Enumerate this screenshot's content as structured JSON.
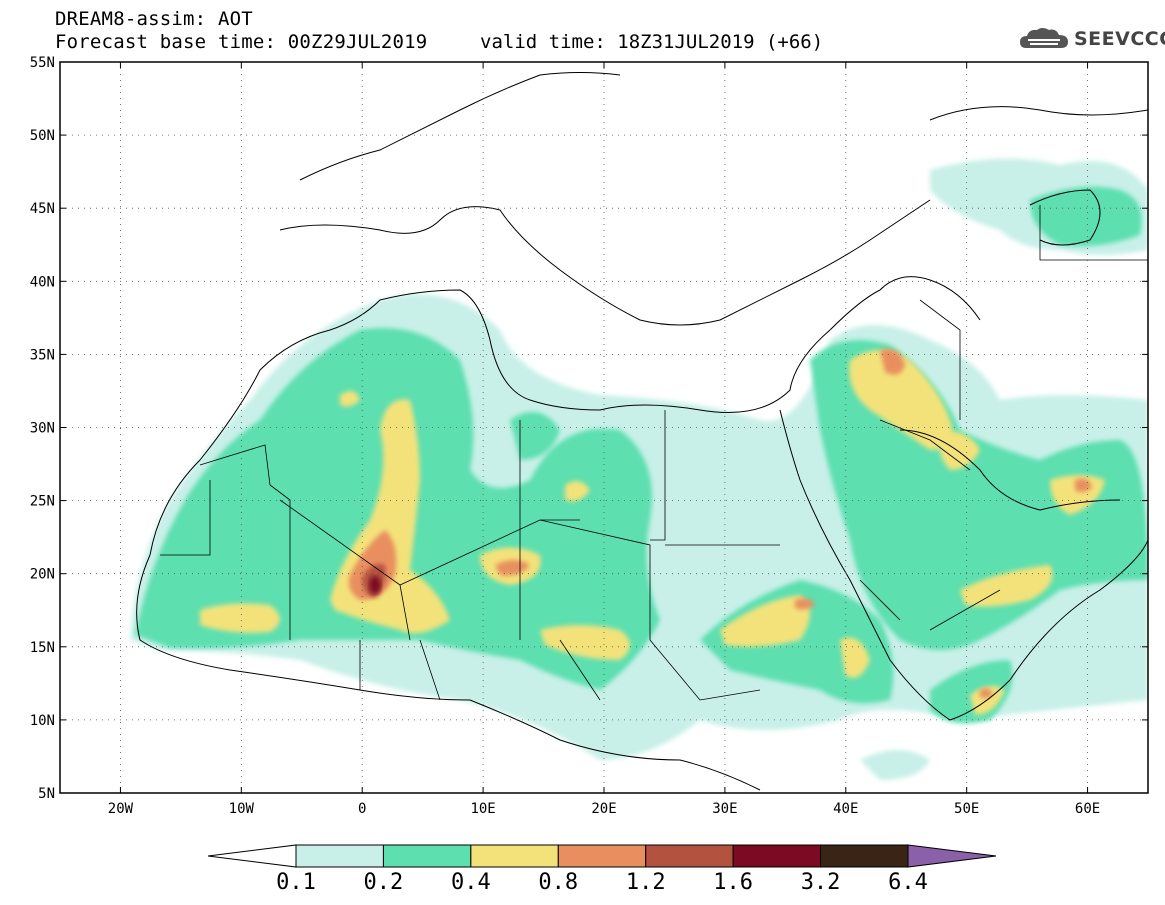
{
  "header": {
    "title": "DREAM8-assim: AOT",
    "base_time": "Forecast base time: 00Z29JUL2019",
    "valid_time": "valid time: 18Z31JUL2019 (+66)"
  },
  "logo": {
    "text": "SEEVCCC",
    "icon": "cloud-icon"
  },
  "map": {
    "lon_range": [
      -25,
      65
    ],
    "lat_range": [
      5,
      55
    ],
    "lat_labels": [
      "5N",
      "10N",
      "15N",
      "20N",
      "25N",
      "30N",
      "35N",
      "40N",
      "45N",
      "50N",
      "55N"
    ],
    "lon_labels": [
      "20W",
      "10W",
      "0",
      "10E",
      "20E",
      "30E",
      "40E",
      "50E",
      "60E"
    ],
    "grid": "dotted"
  },
  "colorbar": {
    "labels": [
      "0.1",
      "0.2",
      "0.4",
      "0.8",
      "1.2",
      "1.6",
      "3.2",
      "6.4"
    ],
    "colors": [
      "#ffffff",
      "#c8f0e8",
      "#5ddfb0",
      "#f3e27a",
      "#e98f5f",
      "#b3533f",
      "#7c0a22",
      "#3a2415",
      "#8a60a8"
    ]
  },
  "colors": {
    "c01": "#c8f0e8",
    "c02": "#5ddfb0",
    "c04": "#f3e27a",
    "c08": "#e98f5f",
    "c12": "#b3533f",
    "c16": "#7c0a22"
  }
}
